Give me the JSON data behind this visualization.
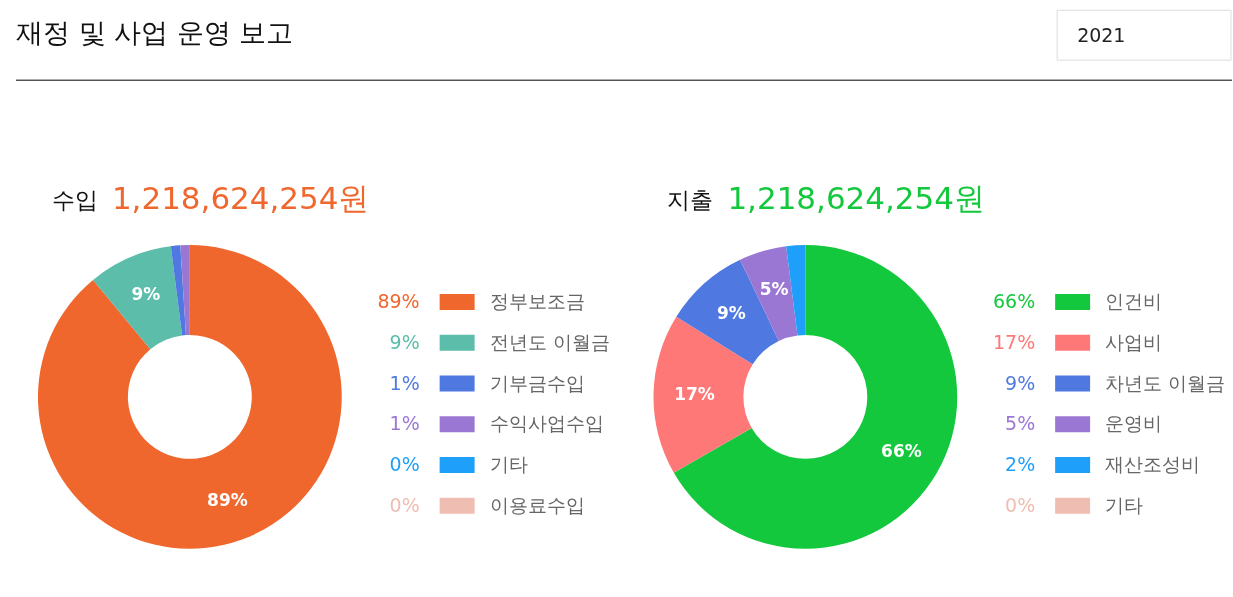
{
  "chart_data": [
    {
      "type": "donut",
      "title": "수입",
      "subtitle": "1,218,624,254원",
      "annotations": [
        "재정 및 사업 운영 보고",
        "2021"
      ],
      "legend": "right",
      "categories": [
        "정부보조금",
        "전년도 이월금",
        "기부금수입",
        "수익사업수입",
        "기타",
        "이용료수입"
      ],
      "values": [
        89,
        9,
        1,
        1,
        0,
        0
      ],
      "value_labels": [
        "89%",
        "9%",
        "1%",
        "1%",
        "0%",
        "0%"
      ],
      "colors": [
        "#f0672e",
        "#5bbdaa",
        "#4f79e0",
        "#9b77d4",
        "#1e9ffa",
        "#f0bdb2"
      ]
    },
    {
      "type": "donut",
      "title": "지출",
      "subtitle": "1,218,624,254원",
      "legend": "right",
      "categories": [
        "인건비",
        "사업비",
        "차년도 이월금",
        "운영비",
        "재산조성비",
        "기타"
      ],
      "values": [
        66,
        17,
        9,
        5,
        2,
        0
      ],
      "value_labels": [
        "66%",
        "17%",
        "9%",
        "5%",
        "2%",
        "0%"
      ],
      "colors": [
        "#13c83c",
        "#ff7878",
        "#4f79e0",
        "#9b77d4",
        "#1e9ffa",
        "#f0bdb2"
      ]
    }
  ]
}
